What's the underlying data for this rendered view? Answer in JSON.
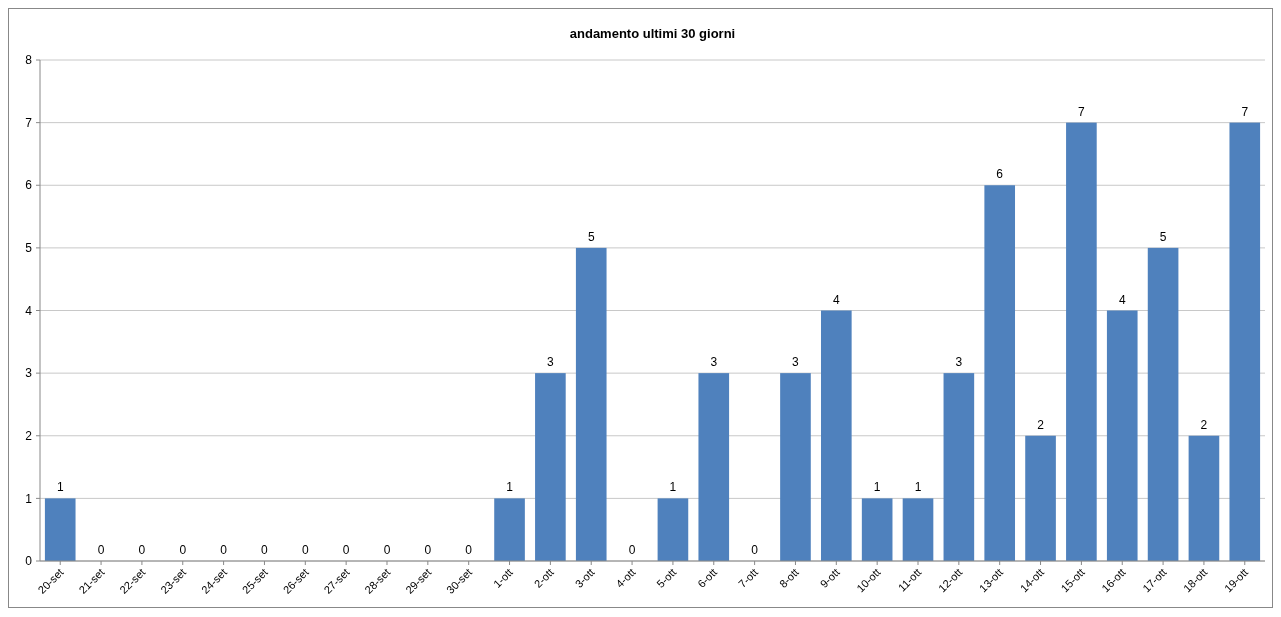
{
  "chart_data": {
    "type": "bar",
    "title": "andamento ultimi 30 giorni",
    "categories": [
      "20-set",
      "21-set",
      "22-set",
      "23-set",
      "24-set",
      "25-set",
      "26-set",
      "27-set",
      "28-set",
      "29-set",
      "30-set",
      "1-ott",
      "2-ott",
      "3-ott",
      "4-ott",
      "5-ott",
      "6-ott",
      "7-ott",
      "8-ott",
      "9-ott",
      "10-ott",
      "11-ott",
      "12-ott",
      "13-ott",
      "14-ott",
      "15-ott",
      "16-ott",
      "17-ott",
      "18-ott",
      "19-ott"
    ],
    "values": [
      1,
      0,
      0,
      0,
      0,
      0,
      0,
      0,
      0,
      0,
      0,
      1,
      3,
      5,
      0,
      1,
      3,
      0,
      3,
      4,
      1,
      1,
      3,
      6,
      2,
      7,
      4,
      5,
      2,
      7
    ],
    "color": "#4f81bd",
    "ylim": [
      0,
      8
    ],
    "yticks": [
      0,
      1,
      2,
      3,
      4,
      5,
      6,
      7,
      8
    ],
    "grid": "y",
    "data_labels": true
  }
}
